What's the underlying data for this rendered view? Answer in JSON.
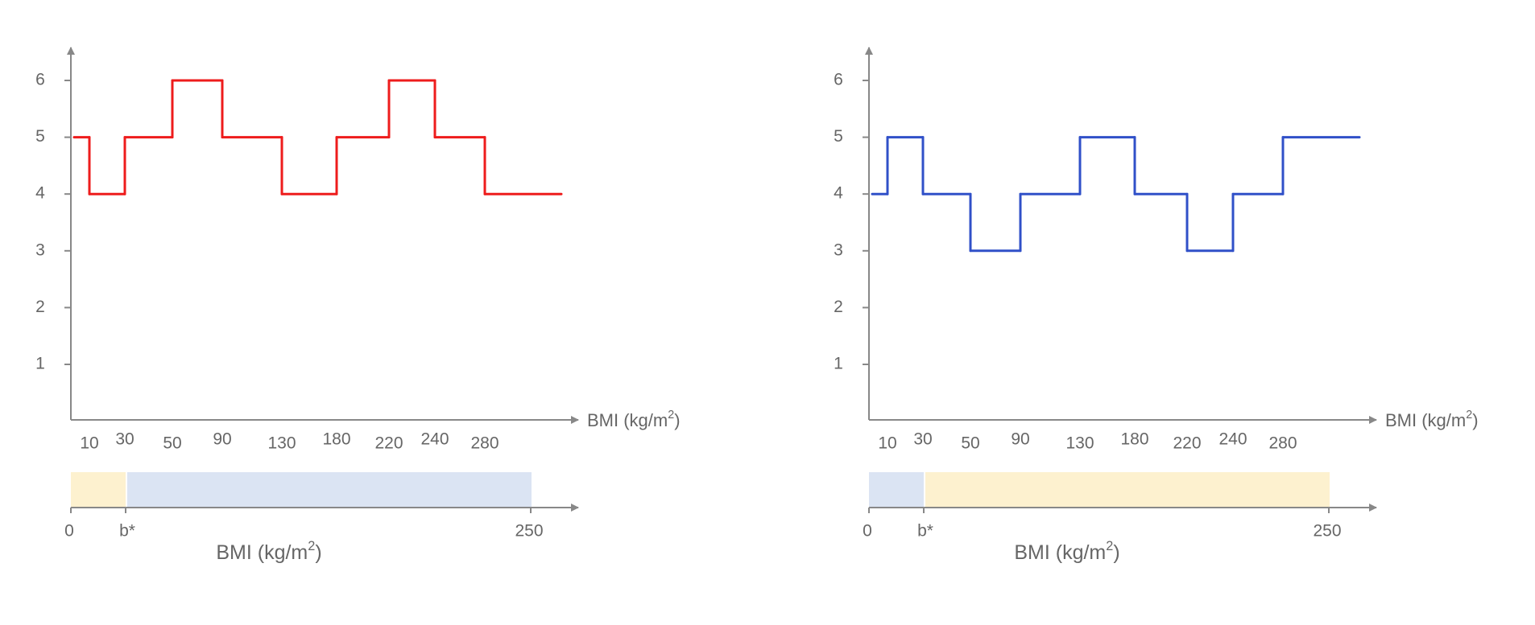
{
  "panels": [
    {
      "line_color": "#ee1c1c",
      "y_ticks": [
        1,
        2,
        3,
        4,
        5,
        6
      ],
      "x_tick_labels": [
        "10",
        "30",
        "50",
        "90",
        "130",
        "180",
        "220",
        "240",
        "280"
      ],
      "x_axis_label": {
        "text": "BMI (kg/m",
        "sup": "2",
        "end": ")"
      },
      "step_levels": [
        5,
        4,
        5,
        6,
        5,
        4,
        5,
        6,
        5,
        4
      ],
      "bar": {
        "segment_colors": [
          "#fdf1cf",
          "#dbe4f3"
        ],
        "labels": [
          "0",
          "b*",
          "250"
        ],
        "title": {
          "text": "BMI (kg/m",
          "sup": "2",
          "end": ")"
        }
      }
    },
    {
      "line_color": "#3050c8",
      "y_ticks": [
        1,
        2,
        3,
        4,
        5,
        6
      ],
      "x_tick_labels": [
        "10",
        "30",
        "50",
        "90",
        "130",
        "180",
        "220",
        "240",
        "280"
      ],
      "x_axis_label": {
        "text": "BMI (kg/m",
        "sup": "2",
        "end": ")"
      },
      "step_levels": [
        4,
        5,
        4,
        3,
        4,
        5,
        4,
        3,
        4,
        5
      ],
      "bar": {
        "segment_colors": [
          "#dbe4f3",
          "#fdf1cf"
        ],
        "labels": [
          "0",
          "b*",
          "250"
        ],
        "title": {
          "text": "BMI (kg/m",
          "sup": "2",
          "end": ")"
        }
      }
    }
  ]
}
